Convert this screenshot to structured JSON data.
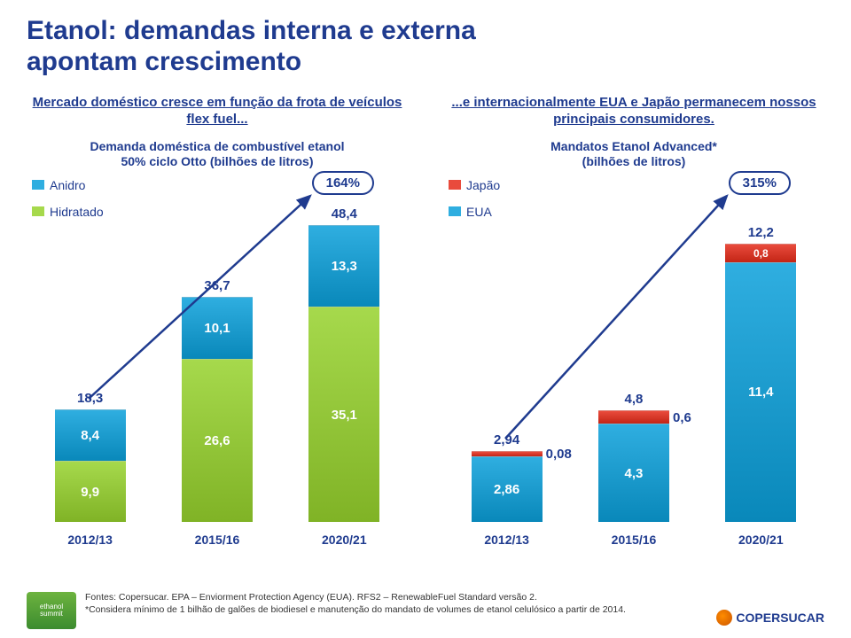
{
  "title_line1": "Etanol: demandas interna e externa",
  "title_line2": "apontam crescimento",
  "left": {
    "subhead": "Mercado doméstico cresce em função da frota de veículos flex fuel...",
    "subhead2_l1": "Demanda doméstica de combustível etanol",
    "subhead2_l2": "50% ciclo Otto (bilhões de litros)",
    "legend": [
      {
        "label": "Anidro",
        "color": "#2faee0"
      },
      {
        "label": "Hidratado",
        "color": "#a6d94c"
      }
    ],
    "growth": "164%",
    "chart": {
      "ymax": 52,
      "bars": [
        {
          "x": "2012/13",
          "total": "18,3",
          "segs": [
            {
              "v": 8.4,
              "label": "8,4",
              "color": "#2faee0"
            },
            {
              "v": 9.9,
              "label": "9,9",
              "color": "#a6d94c"
            }
          ]
        },
        {
          "x": "2015/16",
          "total": "36,7",
          "segs": [
            {
              "v": 10.1,
              "label": "10,1",
              "color": "#2faee0"
            },
            {
              "v": 26.6,
              "label": "26,6",
              "color": "#a6d94c"
            }
          ]
        },
        {
          "x": "2020/21",
          "total": "48,4",
          "segs": [
            {
              "v": 13.3,
              "label": "13,3",
              "color": "#2faee0"
            },
            {
              "v": 35.1,
              "label": "35,1",
              "color": "#a6d94c"
            }
          ]
        }
      ]
    }
  },
  "right": {
    "subhead": "...e internacionalmente EUA e Japão permanecem nossos principais consumidores.",
    "subhead2_l1": "Mandatos Etanol Advanced*",
    "subhead2_l2": "(bilhões de litros)",
    "legend": [
      {
        "label": "Japão",
        "color": "#e94b3c"
      },
      {
        "label": "EUA",
        "color": "#2faee0"
      }
    ],
    "growth": "315%",
    "chart": {
      "ymax": 14,
      "bars": [
        {
          "x": "2012/13",
          "total": "2,94",
          "segs": [
            {
              "v": 0.08,
              "label": "0,08",
              "color": "#e94b3c",
              "side": true
            },
            {
              "v": 2.86,
              "label": "2,86",
              "color": "#2faee0"
            }
          ]
        },
        {
          "x": "2015/16",
          "total": "4,8",
          "segs": [
            {
              "v": 0.6,
              "label": "0,6",
              "color": "#e94b3c",
              "side": true
            },
            {
              "v": 4.3,
              "label": "4,3",
              "color": "#2faee0"
            }
          ]
        },
        {
          "x": "2020/21",
          "total": "12,2",
          "segs": [
            {
              "v": 0.8,
              "label": "0,8",
              "color": "#e94b3c"
            },
            {
              "v": 11.4,
              "label": "11,4",
              "color": "#2faee0"
            }
          ]
        }
      ]
    }
  },
  "footer_l1": "Fontes: Copersucar. EPA – Enviorment Protection Agency (EUA). RFS2 – RenewableFuel Standard versão 2.",
  "footer_l2": "*Considera mínimo de 1 bilhão de galões de biodiesel e manutenção do mandato de volumes de etanol celulósico a partir de 2014.",
  "brand": "COPERSUCAR"
}
